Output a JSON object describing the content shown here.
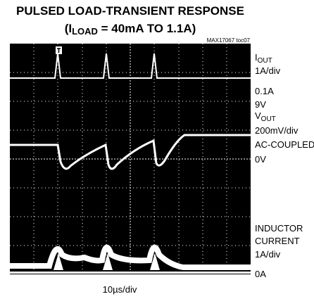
{
  "title": {
    "line1": "PULSED LOAD-TRANSIENT RESPONSE",
    "line2_prefix": "(I",
    "line2_sub": "LOAD",
    "line2_suffix": " = 40mA TO 1.1A)"
  },
  "figure_id": "MAX17067 toc07",
  "labels": {
    "iout": {
      "symbol": "I",
      "sub": "OUT",
      "scale": "1A/div",
      "offset": "0.1A"
    },
    "vin": "9V",
    "vout": {
      "symbol": "V",
      "sub": "OUT",
      "scale": "200mV/div",
      "coupling": "AC-COUPLED",
      "offset": "0V"
    },
    "inductor": {
      "line1": "INDUCTOR",
      "line2": "CURRENT",
      "scale": "1A/div",
      "offset": "0A"
    }
  },
  "timebase": "10µs/div"
}
